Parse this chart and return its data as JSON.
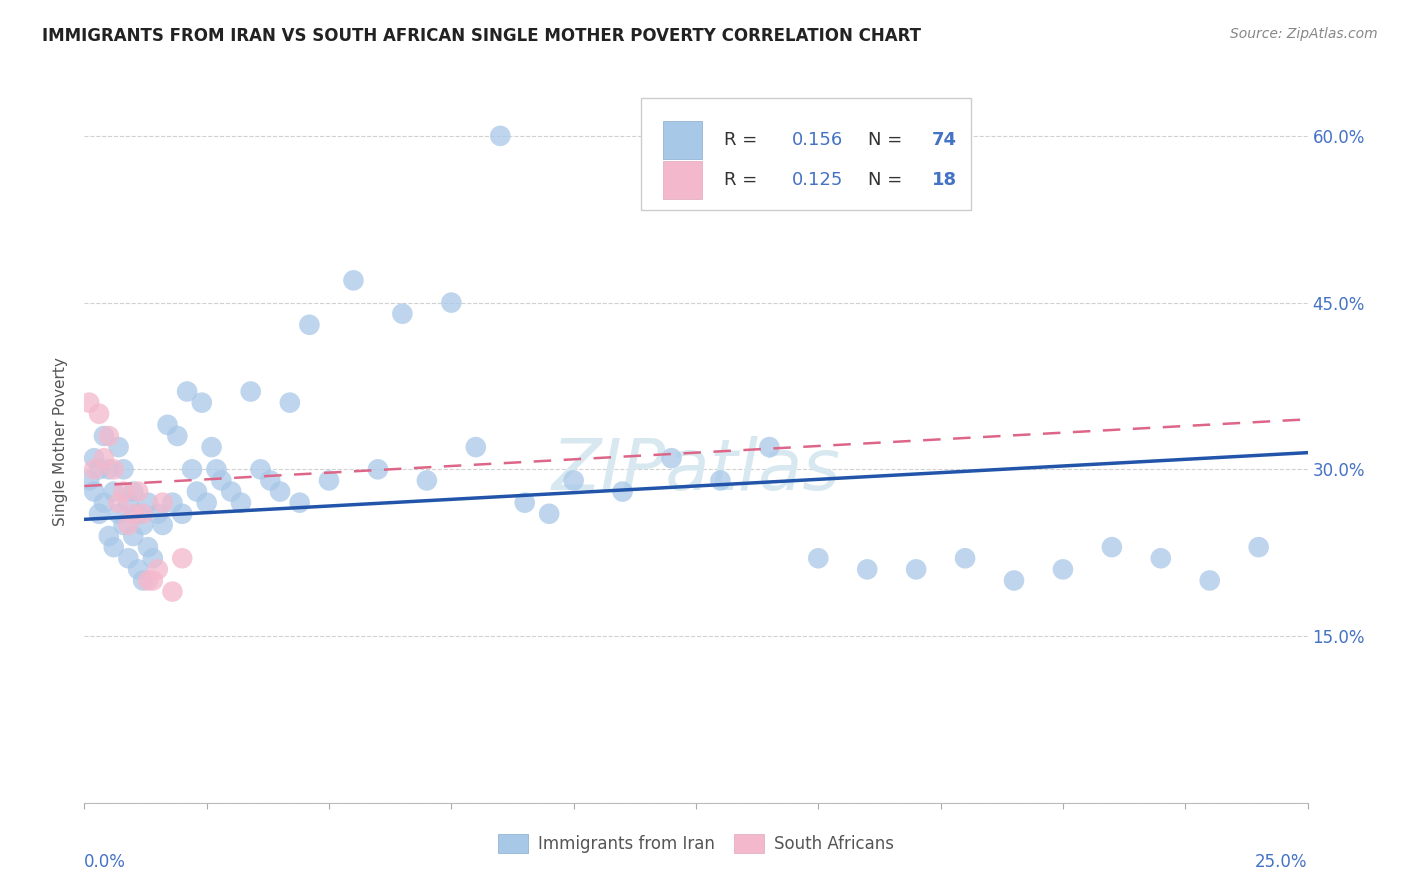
{
  "title": "IMMIGRANTS FROM IRAN VS SOUTH AFRICAN SINGLE MOTHER POVERTY CORRELATION CHART",
  "source": "Source: ZipAtlas.com",
  "ylabel": "Single Mother Poverty",
  "xlim": [
    0.0,
    0.25
  ],
  "ylim": [
    0.0,
    0.65
  ],
  "blue_color": "#a8c8e8",
  "pink_color": "#f4b8cc",
  "trendline_blue": "#2255aa",
  "trendline_pink": "#dd6688",
  "legend_r1": "0.156",
  "legend_n1": "74",
  "legend_r2": "0.125",
  "legend_n2": "18",
  "watermark": "ZIPatlas",
  "blue_x": [
    0.001,
    0.002,
    0.002,
    0.003,
    0.003,
    0.004,
    0.004,
    0.005,
    0.005,
    0.006,
    0.006,
    0.007,
    0.007,
    0.008,
    0.008,
    0.009,
    0.009,
    0.01,
    0.01,
    0.011,
    0.011,
    0.012,
    0.012,
    0.013,
    0.013,
    0.014,
    0.015,
    0.016,
    0.017,
    0.018,
    0.019,
    0.02,
    0.021,
    0.022,
    0.023,
    0.024,
    0.025,
    0.026,
    0.027,
    0.028,
    0.03,
    0.032,
    0.034,
    0.036,
    0.038,
    0.04,
    0.042,
    0.044,
    0.046,
    0.05,
    0.055,
    0.06,
    0.065,
    0.07,
    0.075,
    0.08,
    0.085,
    0.09,
    0.095,
    0.1,
    0.11,
    0.12,
    0.13,
    0.14,
    0.15,
    0.16,
    0.17,
    0.18,
    0.19,
    0.2,
    0.21,
    0.22,
    0.23,
    0.24
  ],
  "blue_y": [
    0.29,
    0.31,
    0.28,
    0.3,
    0.26,
    0.33,
    0.27,
    0.3,
    0.24,
    0.28,
    0.23,
    0.32,
    0.26,
    0.3,
    0.25,
    0.27,
    0.22,
    0.28,
    0.24,
    0.26,
    0.21,
    0.25,
    0.2,
    0.27,
    0.23,
    0.22,
    0.26,
    0.25,
    0.34,
    0.27,
    0.33,
    0.26,
    0.37,
    0.3,
    0.28,
    0.36,
    0.27,
    0.32,
    0.3,
    0.29,
    0.28,
    0.27,
    0.37,
    0.3,
    0.29,
    0.28,
    0.36,
    0.27,
    0.43,
    0.29,
    0.47,
    0.3,
    0.44,
    0.29,
    0.45,
    0.32,
    0.6,
    0.27,
    0.26,
    0.29,
    0.28,
    0.31,
    0.29,
    0.32,
    0.22,
    0.21,
    0.21,
    0.22,
    0.2,
    0.21,
    0.23,
    0.22,
    0.2,
    0.23
  ],
  "pink_x": [
    0.001,
    0.002,
    0.003,
    0.004,
    0.005,
    0.006,
    0.007,
    0.008,
    0.009,
    0.01,
    0.011,
    0.012,
    0.013,
    0.014,
    0.015,
    0.016,
    0.018,
    0.02
  ],
  "pink_y": [
    0.36,
    0.3,
    0.35,
    0.31,
    0.33,
    0.3,
    0.27,
    0.28,
    0.25,
    0.26,
    0.28,
    0.26,
    0.2,
    0.2,
    0.21,
    0.27,
    0.19,
    0.22
  ],
  "blue_trend_x0": 0.0,
  "blue_trend_y0": 0.255,
  "blue_trend_x1": 0.25,
  "blue_trend_y1": 0.315,
  "pink_trend_x0": 0.0,
  "pink_trend_y0": 0.285,
  "pink_trend_x1": 0.25,
  "pink_trend_y1": 0.345
}
